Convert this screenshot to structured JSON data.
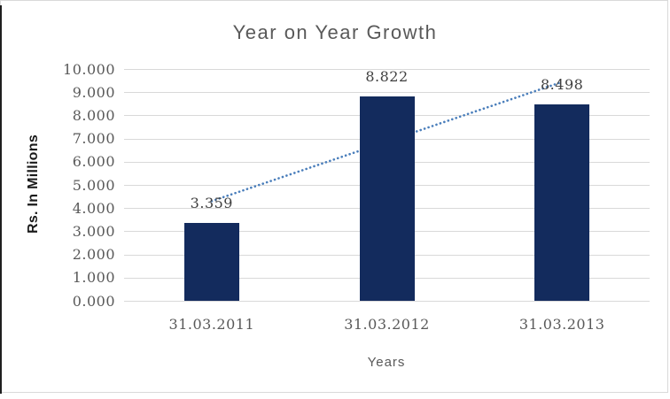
{
  "window": {
    "background": "#FFFFFF",
    "border_color": "#D9D9D9",
    "left_edge_color": "#1F1F1F"
  },
  "chart_data": {
    "type": "bar",
    "title": "Year on Year Growth",
    "xlabel": "Years",
    "ylabel": "Rs. In Millions",
    "categories": [
      "31.03.2011",
      "31.03.2012",
      "31.03.2013"
    ],
    "values": [
      3.359,
      8.822,
      8.498
    ],
    "data_labels": [
      "3.359",
      "8.822",
      "8.498"
    ],
    "ylim": [
      0,
      10
    ],
    "ytick_step": 1,
    "ytick_labels": [
      "0.000",
      "1.000",
      "2.000",
      "3.000",
      "4.000",
      "5.000",
      "6.000",
      "7.000",
      "8.000",
      "9.000",
      "10.000"
    ],
    "grid": true,
    "legend": false,
    "bar_color": "#132B5D",
    "gridline_color": "#D9D9D9",
    "title_color": "#595959",
    "tick_color": "#595959",
    "data_label_color": "#3F3F3F",
    "trendline": {
      "type": "linear",
      "style": "dotted",
      "color": "#4A7EBB",
      "start_value": 4.32,
      "end_value": 9.46
    }
  }
}
